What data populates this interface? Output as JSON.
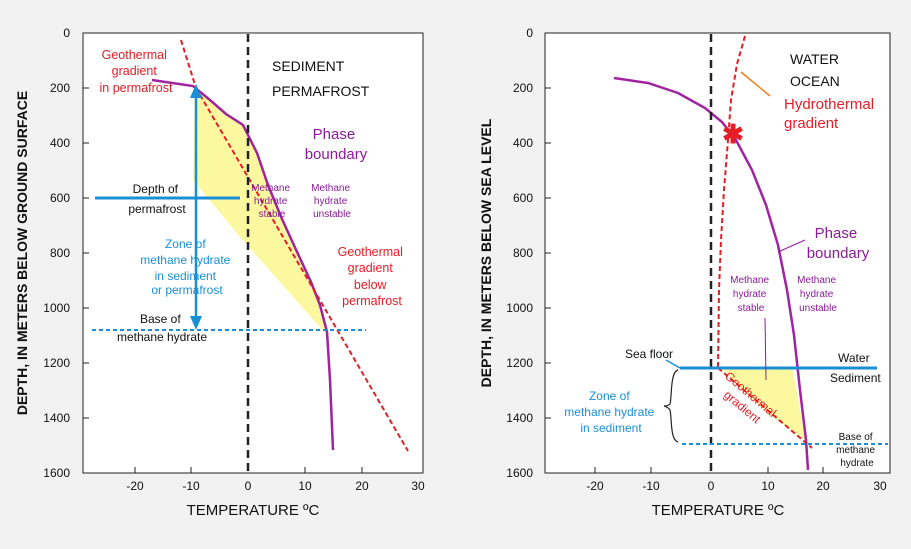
{
  "colors": {
    "geothermal": "#e41e26",
    "phase": "#a0239f",
    "blue": "#1a8fd6",
    "stable_fill": "#fcf8a0"
  },
  "left": {
    "ylabel": "DEPTH, IN METERS BELOW GROUND SURFACE",
    "xlabel": "TEMPERATURE  ºC",
    "y_ticks": [
      "0",
      "200",
      "400",
      "600",
      "800",
      "1000",
      "1200",
      "1400",
      "1600"
    ],
    "x_ticks": [
      "-20",
      "-10",
      "0",
      "10",
      "20",
      "30"
    ],
    "geo_perm": [
      "Geothermal",
      "gradient",
      "in permafrost"
    ],
    "sediment": "SEDIMENT",
    "permafrost": "PERMAFROST",
    "phase": [
      "Phase",
      "boundary"
    ],
    "depth_perm": [
      "Depth of",
      "permafrost"
    ],
    "stable": [
      "Methane",
      "hydrate",
      "stable"
    ],
    "unstable": [
      "Methane",
      "hydrate",
      "unstable"
    ],
    "zone": [
      "Zone of",
      "methane hydrate",
      "in sediment",
      "or permafrost"
    ],
    "geo_below": [
      "Geothermal",
      "gradient",
      "below",
      "permafrost"
    ],
    "base": [
      "Base of",
      "methane hydrate"
    ]
  },
  "right": {
    "ylabel": "DEPTH, IN METERS BELOW SEA LEVEL",
    "xlabel": "TEMPERATURE  ºC",
    "y_ticks": [
      "0",
      "200",
      "400",
      "600",
      "800",
      "1000",
      "1200",
      "1400",
      "1600"
    ],
    "x_ticks": [
      "-20",
      "-10",
      "0",
      "10",
      "20",
      "30"
    ],
    "water": "WATER",
    "ocean": "OCEAN",
    "hydrothermal": [
      "Hydrothermal",
      "gradient"
    ],
    "phase": [
      "Phase",
      "boundary"
    ],
    "stable": [
      "Methane",
      "hydrate",
      "stable"
    ],
    "unstable": [
      "Methane",
      "hydrate",
      "unstable"
    ],
    "sea_floor": "Sea floor",
    "water_label": "Water",
    "sediment_label": "Sediment",
    "zone": [
      "Zone of",
      "methane hydrate",
      "in sediment"
    ],
    "geothermal": [
      "Geothermal",
      "gradient"
    ],
    "base": [
      "Base of",
      "methane",
      "hydrate"
    ]
  }
}
